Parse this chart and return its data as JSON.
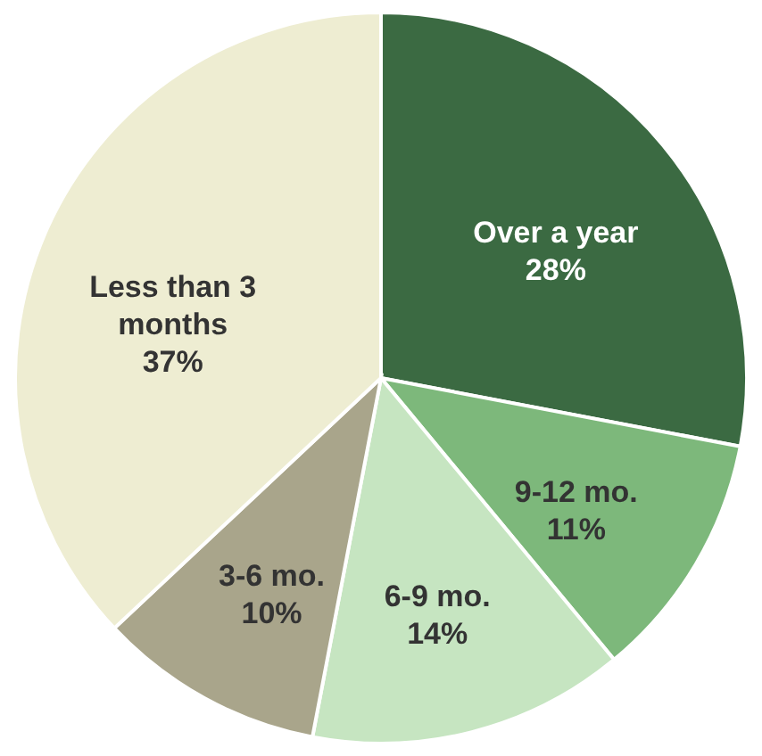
{
  "chart_data": {
    "type": "pie",
    "categories": [
      "Over a year",
      "9-12 mo.",
      "6-9 mo.",
      "3-6 mo.",
      "Less than 3 months"
    ],
    "values": [
      28,
      11,
      14,
      10,
      37
    ],
    "value_labels": [
      "28%",
      "11%",
      "14%",
      "10%",
      "37%"
    ],
    "colors": [
      "#3b6a42",
      "#7db87b",
      "#c6e5c1",
      "#a9a58b",
      "#eeedd2"
    ]
  }
}
